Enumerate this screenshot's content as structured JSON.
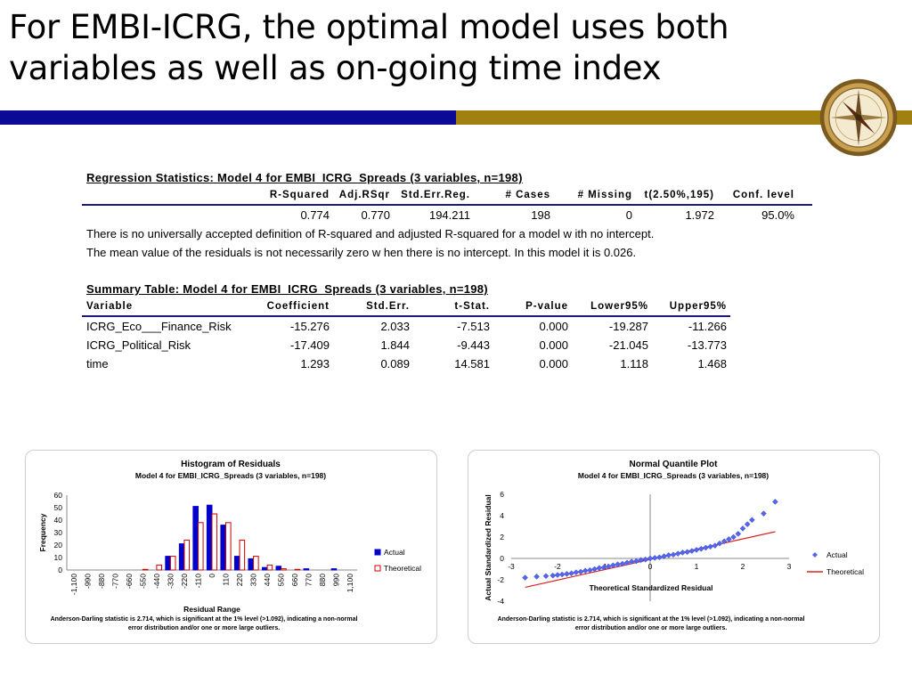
{
  "slide": {
    "title_line1": "For EMBI-ICRG, the optimal model uses both",
    "title_line2": "variables as well as on-going time index",
    "accent_blue": "#0a0a96",
    "accent_gold": "#a08010",
    "logo_icon": "compass-icon"
  },
  "regression": {
    "caption": "Regression Statistics:    Model 4 for EMBI_ICRG_Spreads    (3 variables, n=198)",
    "headers": [
      "R-Squared",
      "Adj.RSqr",
      "Std.Err.Reg.",
      "# Cases",
      "# Missing",
      "t(2.50%,195)",
      "Conf. level"
    ],
    "values": [
      "0.774",
      "0.770",
      "194.211",
      "198",
      "0",
      "1.972",
      "95.0%"
    ],
    "note1": "There is no universally accepted definition of R-squared and adjusted R-squared for a model w ith no intercept.",
    "note2": "The mean value of the residuals is not necessarily zero w hen there is no intercept.  In this model it is 0.026."
  },
  "summary": {
    "caption": "Summary Table:    Model 4 for EMBI_ICRG_Spreads    (3 variables, n=198)",
    "headers": [
      "Variable",
      "Coefficient",
      "Std.Err.",
      "t-Stat.",
      "P-value",
      "Lower95%",
      "Upper95%"
    ],
    "rows": [
      [
        "ICRG_Eco___Finance_Risk",
        "-15.276",
        "2.033",
        "-7.513",
        "0.000",
        "-19.287",
        "-11.266"
      ],
      [
        "ICRG_Political_Risk",
        "-17.409",
        "1.844",
        "-9.443",
        "0.000",
        "-21.045",
        "-13.773"
      ],
      [
        "time",
        "1.293",
        "0.089",
        "14.581",
        "0.000",
        "1.118",
        "1.468"
      ]
    ]
  },
  "chart_data": [
    {
      "type": "bar",
      "title": "Histogram of Residuals",
      "subtitle": "Model 4 for EMBI_ICRG_Spreads    (3 variables, n=198)",
      "xlabel": "Residual Range",
      "ylabel": "Frequency",
      "ylim": [
        0,
        60
      ],
      "yticks": [
        0,
        10,
        20,
        30,
        40,
        50,
        60
      ],
      "categories": [
        "-1,100",
        "-990",
        "-880",
        "-770",
        "-660",
        "-550",
        "-440",
        "-330",
        "-220",
        "-110",
        "0",
        "110",
        "220",
        "330",
        "440",
        "550",
        "660",
        "770",
        "880",
        "990",
        "1,100"
      ],
      "series": [
        {
          "name": "Actual",
          "color": "#0000cc",
          "values": [
            0,
            0,
            0,
            0,
            0,
            0,
            0,
            11,
            21,
            51,
            52,
            36,
            11,
            9,
            2,
            3,
            0,
            1,
            0,
            1,
            0
          ]
        },
        {
          "name": "Theoretical",
          "color": "#ffffff",
          "stroke": "#cc0000",
          "values": [
            0,
            0,
            0,
            0,
            0,
            0.5,
            4,
            11,
            24,
            38,
            45,
            38,
            24,
            11,
            4,
            1,
            0.5,
            0,
            0,
            0,
            0
          ]
        }
      ],
      "legend": "right",
      "footnote_line1": "Anderson-Darling statistic is 2.714, which is significant at the 1% level  (>1.092), indicating a non-normal",
      "footnote_line2": "error distribution and/or one or more large outliers."
    },
    {
      "type": "scatter",
      "title": "Normal Quantile Plot",
      "subtitle": "Model 4 for EMBI_ICRG_Spreads    (3 variables, n=198)",
      "xlabel": "Theoretical Standardized Residual",
      "ylabel": "Actual Standardized Residual",
      "xlim": [
        -3,
        3
      ],
      "ylim": [
        -4,
        6
      ],
      "xticks": [
        -3,
        -2,
        -1,
        0,
        1,
        2,
        3
      ],
      "yticks": [
        -4,
        -2,
        0,
        2,
        4,
        6
      ],
      "series": [
        {
          "name": "Actual",
          "color": "#5566ee",
          "x": [
            -2.7,
            -2.45,
            -2.25,
            -2.1,
            -2.0,
            -1.9,
            -1.8,
            -1.7,
            -1.6,
            -1.5,
            -1.4,
            -1.3,
            -1.2,
            -1.1,
            -1.0,
            -0.9,
            -0.8,
            -0.7,
            -0.6,
            -0.5,
            -0.4,
            -0.3,
            -0.2,
            -0.1,
            0.0,
            0.1,
            0.2,
            0.3,
            0.4,
            0.5,
            0.6,
            0.7,
            0.8,
            0.9,
            1.0,
            1.1,
            1.2,
            1.3,
            1.4,
            1.5,
            1.6,
            1.7,
            1.8,
            1.9,
            2.0,
            2.1,
            2.2,
            2.45,
            2.7
          ],
          "y": [
            -1.8,
            -1.7,
            -1.65,
            -1.6,
            -1.55,
            -1.5,
            -1.45,
            -1.4,
            -1.3,
            -1.25,
            -1.15,
            -1.1,
            -1.0,
            -0.9,
            -0.85,
            -0.75,
            -0.65,
            -0.55,
            -0.5,
            -0.4,
            -0.3,
            -0.25,
            -0.15,
            -0.1,
            0.0,
            0.05,
            0.1,
            0.2,
            0.3,
            0.35,
            0.45,
            0.55,
            0.6,
            0.7,
            0.8,
            0.9,
            1.0,
            1.1,
            1.2,
            1.4,
            1.6,
            1.8,
            2.0,
            2.3,
            2.8,
            3.2,
            3.6,
            4.2,
            5.3
          ]
        },
        {
          "name": "Theoretical",
          "color": "#dd2222",
          "x": [
            -2.7,
            2.7
          ],
          "y": [
            -2.7,
            2.5
          ]
        }
      ],
      "legend": "right",
      "footnote_line1": "Anderson-Darling statistic is 2.714, which is significant at the 1% level  (>1.092), indicating a non-normal",
      "footnote_line2": "error distribution and/or one or more large outliers."
    }
  ]
}
